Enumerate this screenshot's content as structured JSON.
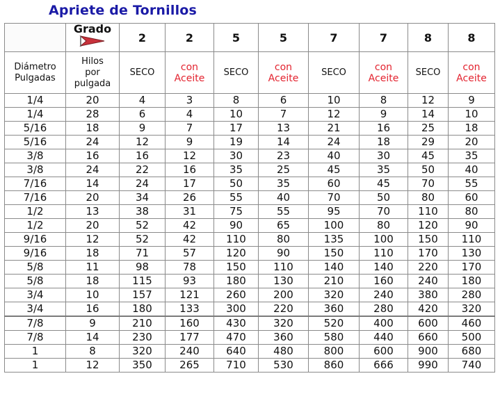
{
  "title": "Apriete de Tornillos",
  "header": {
    "grado_label": "Grado",
    "grades": [
      "2",
      "2",
      "5",
      "5",
      "7",
      "7",
      "8",
      "8"
    ],
    "diameter_label_line1": "Diámetro",
    "diameter_label_line2": "Pulgadas",
    "threads_label_line1": "Hilos",
    "threads_label_line2": "por",
    "threads_label_line3": "pulgada",
    "conditions": [
      {
        "line1": "SECO",
        "line2": ""
      },
      {
        "line1": "con",
        "line2": "Aceite"
      },
      {
        "line1": "SECO",
        "line2": ""
      },
      {
        "line1": "con",
        "line2": "Aceite"
      },
      {
        "line1": "SECO",
        "line2": ""
      },
      {
        "line1": "con",
        "line2": "Aceite"
      },
      {
        "line1": "SECO",
        "line2": ""
      },
      {
        "line1": "con",
        "line2": "Aceite"
      }
    ]
  },
  "rows": [
    {
      "diameter": "1/4",
      "threads": "20",
      "values": [
        "4",
        "3",
        "8",
        "6",
        "10",
        "8",
        "12",
        "9"
      ]
    },
    {
      "diameter": "1/4",
      "threads": "28",
      "values": [
        "6",
        "4",
        "10",
        "7",
        "12",
        "9",
        "14",
        "10"
      ]
    },
    {
      "diameter": "5/16",
      "threads": "18",
      "values": [
        "9",
        "7",
        "17",
        "13",
        "21",
        "16",
        "25",
        "18"
      ]
    },
    {
      "diameter": "5/16",
      "threads": "24",
      "values": [
        "12",
        "9",
        "19",
        "14",
        "24",
        "18",
        "29",
        "20"
      ]
    },
    {
      "diameter": "3/8",
      "threads": "16",
      "values": [
        "16",
        "12",
        "30",
        "23",
        "40",
        "30",
        "45",
        "35"
      ]
    },
    {
      "diameter": "3/8",
      "threads": "24",
      "values": [
        "22",
        "16",
        "35",
        "25",
        "45",
        "35",
        "50",
        "40"
      ]
    },
    {
      "diameter": "7/16",
      "threads": "14",
      "values": [
        "24",
        "17",
        "50",
        "35",
        "60",
        "45",
        "70",
        "55"
      ]
    },
    {
      "diameter": "7/16",
      "threads": "20",
      "values": [
        "34",
        "26",
        "55",
        "40",
        "70",
        "50",
        "80",
        "60"
      ]
    },
    {
      "diameter": "1/2",
      "threads": "13",
      "values": [
        "38",
        "31",
        "75",
        "55",
        "95",
        "70",
        "110",
        "80"
      ]
    },
    {
      "diameter": "1/2",
      "threads": "20",
      "values": [
        "52",
        "42",
        "90",
        "65",
        "100",
        "80",
        "120",
        "90"
      ]
    },
    {
      "diameter": "9/16",
      "threads": "12",
      "values": [
        "52",
        "42",
        "110",
        "80",
        "135",
        "100",
        "150",
        "110"
      ]
    },
    {
      "diameter": "9/16",
      "threads": "18",
      "values": [
        "71",
        "57",
        "120",
        "90",
        "150",
        "110",
        "170",
        "130"
      ]
    },
    {
      "diameter": "5/8",
      "threads": "11",
      "values": [
        "98",
        "78",
        "150",
        "110",
        "140",
        "140",
        "220",
        "170"
      ]
    },
    {
      "diameter": "5/8",
      "threads": "18",
      "values": [
        "115",
        "93",
        "180",
        "130",
        "210",
        "160",
        "240",
        "180"
      ]
    },
    {
      "diameter": "3/4",
      "threads": "10",
      "values": [
        "157",
        "121",
        "260",
        "200",
        "320",
        "240",
        "380",
        "280"
      ]
    },
    {
      "diameter": "3/4",
      "threads": "16",
      "values": [
        "180",
        "133",
        "300",
        "220",
        "360",
        "280",
        "420",
        "320"
      ]
    },
    {
      "diameter": "7/8",
      "threads": "9",
      "values": [
        "210",
        "160",
        "430",
        "320",
        "520",
        "400",
        "600",
        "460"
      ]
    },
    {
      "diameter": "7/8",
      "threads": "14",
      "values": [
        "230",
        "177",
        "470",
        "360",
        "580",
        "440",
        "660",
        "500"
      ]
    },
    {
      "diameter": "1",
      "threads": "8",
      "values": [
        "320",
        "240",
        "640",
        "480",
        "800",
        "600",
        "900",
        "680"
      ]
    },
    {
      "diameter": "1",
      "threads": "12",
      "values": [
        "350",
        "265",
        "710",
        "530",
        "860",
        "666",
        "990",
        "740"
      ]
    }
  ],
  "colors": {
    "title": "#1a1aa6",
    "oil_text": "#e3232f",
    "flag": "#c8323c"
  }
}
